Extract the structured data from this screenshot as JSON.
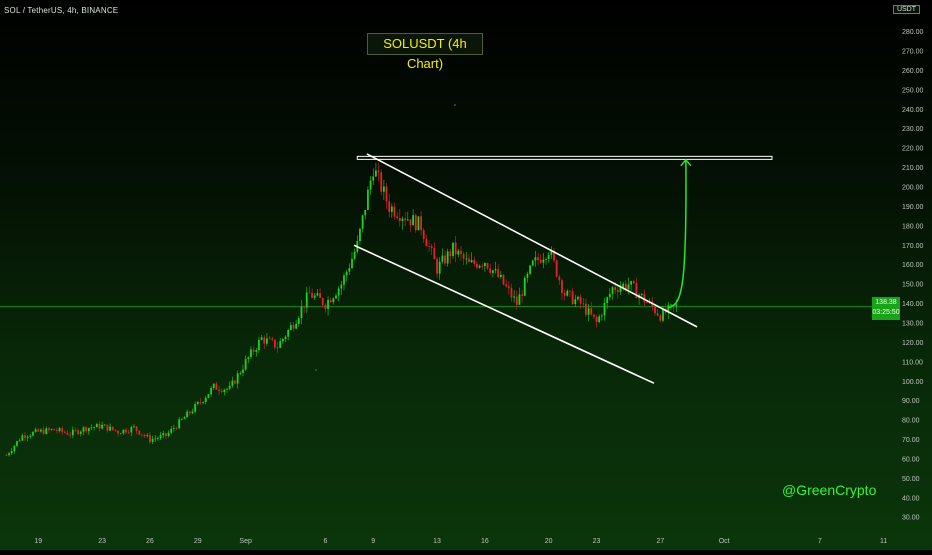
{
  "header": {
    "symbol": "SOL / TetherUS, 4h, BINANCE",
    "currency": "USDT",
    "chart_title": "SOLUSDT (4h Chart)"
  },
  "watermark": "@GreenCrypto",
  "price_tag": {
    "price": "138.38",
    "countdown": "03:25:50"
  },
  "colors": {
    "up_candle": "#1fd31f",
    "down_candle": "#e8222a",
    "channel_lines": "#ffffff",
    "resistance_box": "#ffffff",
    "projection": "#29e629",
    "title_text": "#f4f100",
    "watermark": "#37f537",
    "current_price_line": "#1c9a1c"
  },
  "chart_data": {
    "type": "candlestick",
    "title": "SOLUSDT (4h Chart)",
    "xlabel": "",
    "ylabel": "",
    "x_ticks": [
      "19",
      "23",
      "26",
      "29",
      "Sep",
      "6",
      "9",
      "13",
      "16",
      "20",
      "23",
      "27",
      "Oct",
      "7",
      "11"
    ],
    "y_ticks": [
      30,
      40,
      50,
      60,
      70,
      80,
      90,
      100,
      110,
      120,
      130,
      140,
      150,
      160,
      170,
      180,
      190,
      200,
      210,
      220,
      230,
      240,
      250,
      260,
      270,
      280
    ],
    "y_tick_labels": [
      "30.00",
      "40.00",
      "50.00",
      "60.00",
      "70.00",
      "80.00",
      "90.00",
      "100.00",
      "110.00",
      "120.00",
      "130.00",
      "140.00",
      "150.00",
      "160.00",
      "170.00",
      "180.00",
      "190.00",
      "200.00",
      "210.00",
      "220.00",
      "230.00",
      "240.00",
      "250.00",
      "260.00",
      "270.00",
      "280.00"
    ],
    "ylim": [
      26,
      287
    ],
    "current_price": 138.38,
    "close_series": [
      {
        "date": "Aug 17",
        "close": 62
      },
      {
        "date": "Aug 18",
        "close": 72
      },
      {
        "date": "Aug 19",
        "close": 74
      },
      {
        "date": "Aug 20",
        "close": 75
      },
      {
        "date": "Aug 21",
        "close": 73
      },
      {
        "date": "Aug 22",
        "close": 76
      },
      {
        "date": "Aug 23",
        "close": 77
      },
      {
        "date": "Aug 24",
        "close": 74
      },
      {
        "date": "Aug 25",
        "close": 76
      },
      {
        "date": "Aug 26",
        "close": 70
      },
      {
        "date": "Aug 27",
        "close": 72
      },
      {
        "date": "Aug 28",
        "close": 80
      },
      {
        "date": "Aug 29",
        "close": 88
      },
      {
        "date": "Aug 30",
        "close": 97
      },
      {
        "date": "Aug 31",
        "close": 96
      },
      {
        "date": "Sep 1",
        "close": 110
      },
      {
        "date": "Sep 2",
        "close": 122
      },
      {
        "date": "Sep 3",
        "close": 118
      },
      {
        "date": "Sep 4",
        "close": 130
      },
      {
        "date": "Sep 5",
        "close": 145
      },
      {
        "date": "Sep 6",
        "close": 140
      },
      {
        "date": "Sep 7",
        "close": 150
      },
      {
        "date": "Sep 8",
        "close": 170
      },
      {
        "date": "Sep 9",
        "close": 210
      },
      {
        "date": "Sep 10",
        "close": 190
      },
      {
        "date": "Sep 11",
        "close": 185
      },
      {
        "date": "Sep 12",
        "close": 180
      },
      {
        "date": "Sep 13",
        "close": 158
      },
      {
        "date": "Sep 14",
        "close": 168
      },
      {
        "date": "Sep 15",
        "close": 160
      },
      {
        "date": "Sep 16",
        "close": 162
      },
      {
        "date": "Sep 17",
        "close": 152
      },
      {
        "date": "Sep 18",
        "close": 140
      },
      {
        "date": "Sep 19",
        "close": 160
      },
      {
        "date": "Sep 20",
        "close": 168
      },
      {
        "date": "Sep 21",
        "close": 145
      },
      {
        "date": "Sep 22",
        "close": 140
      },
      {
        "date": "Sep 23",
        "close": 130
      },
      {
        "date": "Sep 24",
        "close": 148
      },
      {
        "date": "Sep 25",
        "close": 150
      },
      {
        "date": "Sep 26",
        "close": 142
      },
      {
        "date": "Sep 27",
        "close": 134
      },
      {
        "date": "Sep 28",
        "close": 138.38
      }
    ],
    "annotations": [
      {
        "type": "horizontal-zone",
        "price": 215,
        "from_date": "Sep 8",
        "to_date": "Oct 4"
      },
      {
        "type": "channel-upper",
        "from": {
          "date": "Sep 8.6",
          "price": 217
        },
        "to": {
          "date": "Sep 29.3",
          "price": 128
        }
      },
      {
        "type": "channel-lower",
        "from": {
          "date": "Sep 7.8",
          "price": 170
        },
        "to": {
          "date": "Sep 26.6",
          "price": 99
        }
      },
      {
        "type": "projection-arrow",
        "from": {
          "date": "Sep 27.5",
          "price": 138
        },
        "to": {
          "date": "Sep 28.6",
          "price": 214
        }
      }
    ],
    "grid": false,
    "legend": "none"
  }
}
